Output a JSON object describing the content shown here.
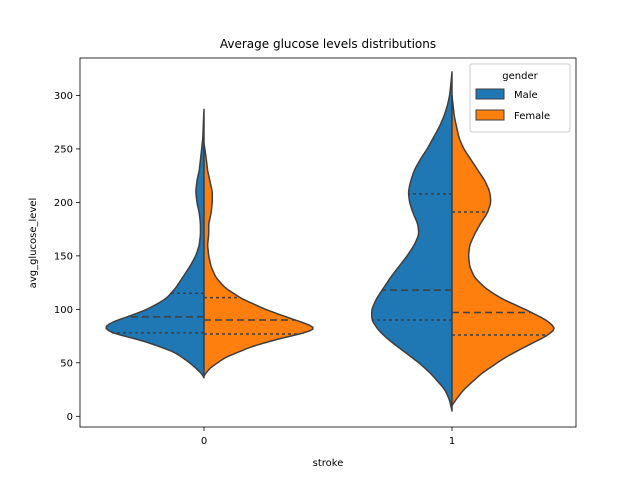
{
  "chart_data": {
    "type": "violin",
    "split": true,
    "inner": "quartile",
    "title": "Average glucose levels distributions",
    "xlabel": "stroke",
    "ylabel": "avg_glucose_level",
    "categories": [
      "0",
      "1"
    ],
    "ylim": [
      -10,
      335
    ],
    "yticks": [
      0,
      50,
      100,
      150,
      200,
      250,
      300
    ],
    "grid": false,
    "legend": {
      "title": "gender",
      "placement": "top-right"
    },
    "series": [
      {
        "name": "Male",
        "color": "#1f77b4",
        "violins": [
          {
            "category": "0",
            "range": [
              36,
              287
            ],
            "quartiles": {
              "q1": 78,
              "median": 93,
              "q3": 115
            },
            "profile": [
              [
                36,
                0
              ],
              [
                40,
                0.02
              ],
              [
                50,
                0.12
              ],
              [
                60,
                0.25
              ],
              [
                70,
                0.5
              ],
              [
                78,
                0.78
              ],
              [
                83,
                0.85
              ],
              [
                88,
                0.78
              ],
              [
                93,
                0.65
              ],
              [
                100,
                0.48
              ],
              [
                110,
                0.32
              ],
              [
                120,
                0.24
              ],
              [
                130,
                0.18
              ],
              [
                140,
                0.12
              ],
              [
                150,
                0.07
              ],
              [
                160,
                0.04
              ],
              [
                170,
                0.03
              ],
              [
                180,
                0.03
              ],
              [
                190,
                0.04
              ],
              [
                200,
                0.06
              ],
              [
                210,
                0.07
              ],
              [
                220,
                0.06
              ],
              [
                230,
                0.04
              ],
              [
                240,
                0.03
              ],
              [
                250,
                0.02
              ],
              [
                260,
                0.01
              ],
              [
                275,
                0.005
              ],
              [
                287,
                0
              ]
            ]
          },
          {
            "category": "1",
            "range": [
              5,
              322
            ],
            "quartiles": {
              "q1": 90,
              "median": 118,
              "q3": 208
            },
            "profile": [
              [
                5,
                0
              ],
              [
                15,
                0.02
              ],
              [
                25,
                0.06
              ],
              [
                40,
                0.18
              ],
              [
                50,
                0.28
              ],
              [
                60,
                0.4
              ],
              [
                70,
                0.52
              ],
              [
                80,
                0.62
              ],
              [
                90,
                0.68
              ],
              [
                100,
                0.68
              ],
              [
                110,
                0.64
              ],
              [
                120,
                0.58
              ],
              [
                130,
                0.52
              ],
              [
                140,
                0.45
              ],
              [
                150,
                0.38
              ],
              [
                160,
                0.32
              ],
              [
                170,
                0.28
              ],
              [
                180,
                0.29
              ],
              [
                190,
                0.33
              ],
              [
                200,
                0.36
              ],
              [
                210,
                0.37
              ],
              [
                220,
                0.35
              ],
              [
                230,
                0.32
              ],
              [
                240,
                0.27
              ],
              [
                250,
                0.21
              ],
              [
                260,
                0.16
              ],
              [
                270,
                0.11
              ],
              [
                280,
                0.07
              ],
              [
                290,
                0.04
              ],
              [
                300,
                0.02
              ],
              [
                310,
                0.01
              ],
              [
                322,
                0
              ]
            ]
          }
        ]
      },
      {
        "name": "Female",
        "color": "#ff7f0e",
        "violins": [
          {
            "category": "0",
            "range": [
              38,
              255
            ],
            "quartiles": {
              "q1": 77,
              "median": 90,
              "q3": 111
            },
            "profile": [
              [
                38,
                0
              ],
              [
                45,
                0.05
              ],
              [
                55,
                0.18
              ],
              [
                65,
                0.4
              ],
              [
                72,
                0.62
              ],
              [
                78,
                0.85
              ],
              [
                82,
                0.95
              ],
              [
                86,
                0.88
              ],
              [
                92,
                0.72
              ],
              [
                100,
                0.52
              ],
              [
                110,
                0.32
              ],
              [
                120,
                0.18
              ],
              [
                130,
                0.1
              ],
              [
                140,
                0.06
              ],
              [
                150,
                0.04
              ],
              [
                160,
                0.03
              ],
              [
                170,
                0.04
              ],
              [
                180,
                0.04
              ],
              [
                190,
                0.06
              ],
              [
                200,
                0.07
              ],
              [
                210,
                0.07
              ],
              [
                220,
                0.05
              ],
              [
                230,
                0.03
              ],
              [
                240,
                0.02
              ],
              [
                248,
                0.01
              ],
              [
                255,
                0
              ]
            ]
          },
          {
            "category": "1",
            "range": [
              10,
              300
            ],
            "quartiles": {
              "q1": 76,
              "median": 97,
              "q3": 191
            },
            "profile": [
              [
                10,
                0
              ],
              [
                15,
                0.03
              ],
              [
                25,
                0.1
              ],
              [
                40,
                0.25
              ],
              [
                55,
                0.45
              ],
              [
                65,
                0.62
              ],
              [
                75,
                0.8
              ],
              [
                82,
                0.88
              ],
              [
                90,
                0.8
              ],
              [
                100,
                0.62
              ],
              [
                110,
                0.42
              ],
              [
                120,
                0.28
              ],
              [
                130,
                0.19
              ],
              [
                140,
                0.15
              ],
              [
                150,
                0.14
              ],
              [
                160,
                0.15
              ],
              [
                170,
                0.19
              ],
              [
                180,
                0.24
              ],
              [
                190,
                0.3
              ],
              [
                200,
                0.33
              ],
              [
                210,
                0.32
              ],
              [
                220,
                0.28
              ],
              [
                230,
                0.22
              ],
              [
                240,
                0.16
              ],
              [
                250,
                0.1
              ],
              [
                260,
                0.06
              ],
              [
                270,
                0.04
              ],
              [
                280,
                0.02
              ],
              [
                290,
                0.01
              ],
              [
                300,
                0
              ]
            ]
          }
        ]
      }
    ]
  }
}
